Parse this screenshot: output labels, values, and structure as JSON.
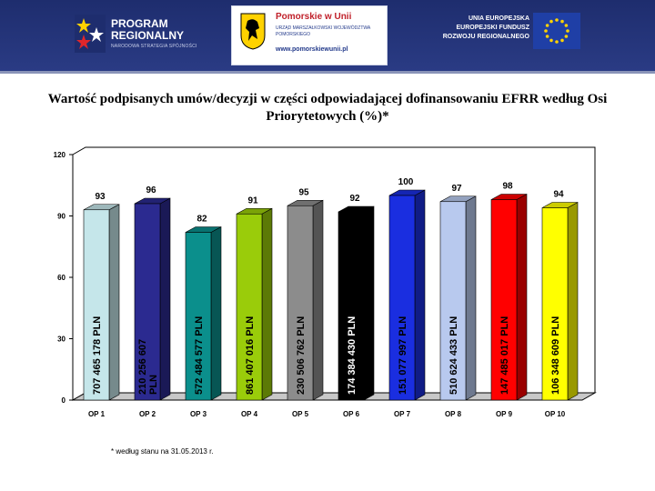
{
  "header": {
    "program_title": "PROGRAM\nREGIONALNY",
    "program_subtitle": "NARODOWA STRATEGIA SPÓJNOŚCI",
    "pomorskie_title": "Pomorskie w Unii",
    "pomorskie_subtitle": "URZĄD MARSZAŁKOWSKI WOJEWÓDZTWA POMORSKIEGO",
    "pomorskie_url": "www.pomorskiewunii.pl",
    "eu_text": "UNIA EUROPEJSKA\nEUROPEJSKI FUNDUSZ\nROZWOJU REGIONALNEGO",
    "colors": {
      "banner": "#1e2d6e",
      "eu_flag": "#1f3fa6",
      "eu_star": "#ffd200"
    }
  },
  "footnote": "* według stanu na 31.05.2013 r.",
  "chart_data": {
    "type": "bar",
    "title": "Wartość podpisanych umów/decyzji w części odpowiadającej dofinansowaniu EFRR według Osi Priorytetowych (%)*",
    "categories": [
      "OP 1",
      "OP 2",
      "OP 3",
      "OP 4",
      "OP 5",
      "OP 6",
      "OP 7",
      "OP 8",
      "OP 9",
      "OP 10"
    ],
    "values": [
      93,
      96,
      82,
      91,
      95,
      92,
      100,
      97,
      98,
      94
    ],
    "bar_labels": [
      "707 465 178 PLN",
      "210 256 607 PLN",
      "572 484 577 PLN",
      "861 407 016 PLN",
      "230 506 762 PLN",
      "174 384 430 PLN",
      "151 077 997 PLN",
      "510 624 433 PLN",
      "147 485 017 PLN",
      "106 348 609 PLN"
    ],
    "bar_colors": [
      "#c5e6ea",
      "#2b2a90",
      "#0b8f8c",
      "#9acc0a",
      "#8c8c8c",
      "#000000",
      "#1a2ee0",
      "#b8c9ee",
      "#ff0000",
      "#ffff00"
    ],
    "bar_label_colors": [
      "#000000",
      "#000000",
      "#000000",
      "#000000",
      "#000000",
      "#ffffff",
      "#000000",
      "#000000",
      "#000000",
      "#000000"
    ],
    "ylim": [
      0,
      120
    ],
    "yticks": [
      0,
      30,
      60,
      90,
      120
    ],
    "xlabel": "",
    "ylabel": "",
    "grid": false,
    "legend": "none"
  }
}
